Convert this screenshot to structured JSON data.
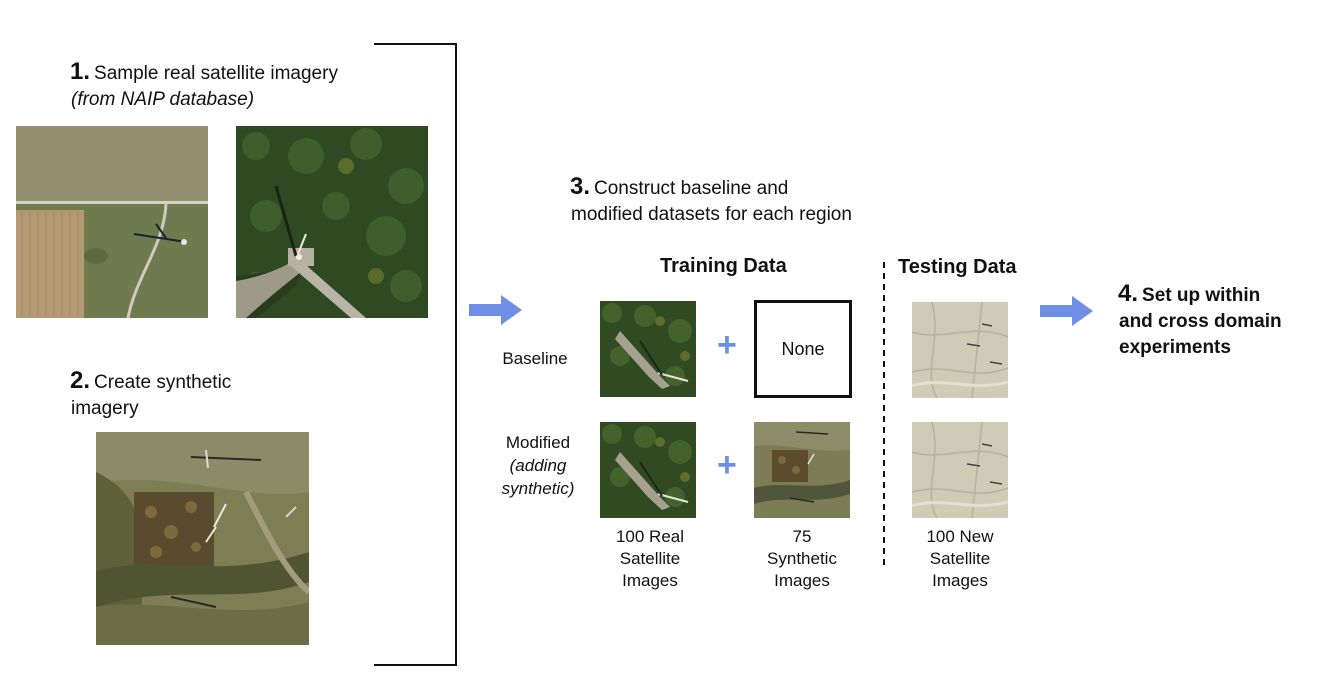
{
  "steps": {
    "step1": {
      "number": "1.",
      "text": "Sample real satellite imagery",
      "subtext": "(from NAIP database)"
    },
    "step2": {
      "number": "2.",
      "line1": "Create synthetic",
      "line2": "imagery"
    },
    "step3": {
      "number": "3.",
      "line1": "Construct baseline and",
      "line2": "modified datasets for each region"
    },
    "step4": {
      "number": "4.",
      "line1": "Set up within",
      "line2": "and cross domain",
      "line3": "experiments"
    }
  },
  "columns": {
    "training": "Training Data",
    "testing": "Testing Data"
  },
  "rows": {
    "baseline": "Baseline",
    "modified_line1": "Modified",
    "modified_line2": "(adding",
    "modified_line3": "synthetic)"
  },
  "plus_sign": "+",
  "none_label": "None",
  "captions": {
    "real": {
      "line1": "100 Real",
      "line2": "Satellite",
      "line3": "Images"
    },
    "synthetic": {
      "line1": "75",
      "line2": "Synthetic",
      "line3": "Images"
    },
    "new": {
      "line1": "100 New",
      "line2": "Satellite",
      "line3": "Images"
    }
  },
  "colors": {
    "arrow": "#6f8fe6",
    "plus": "#6f8fe6",
    "bracket": "#111111"
  }
}
